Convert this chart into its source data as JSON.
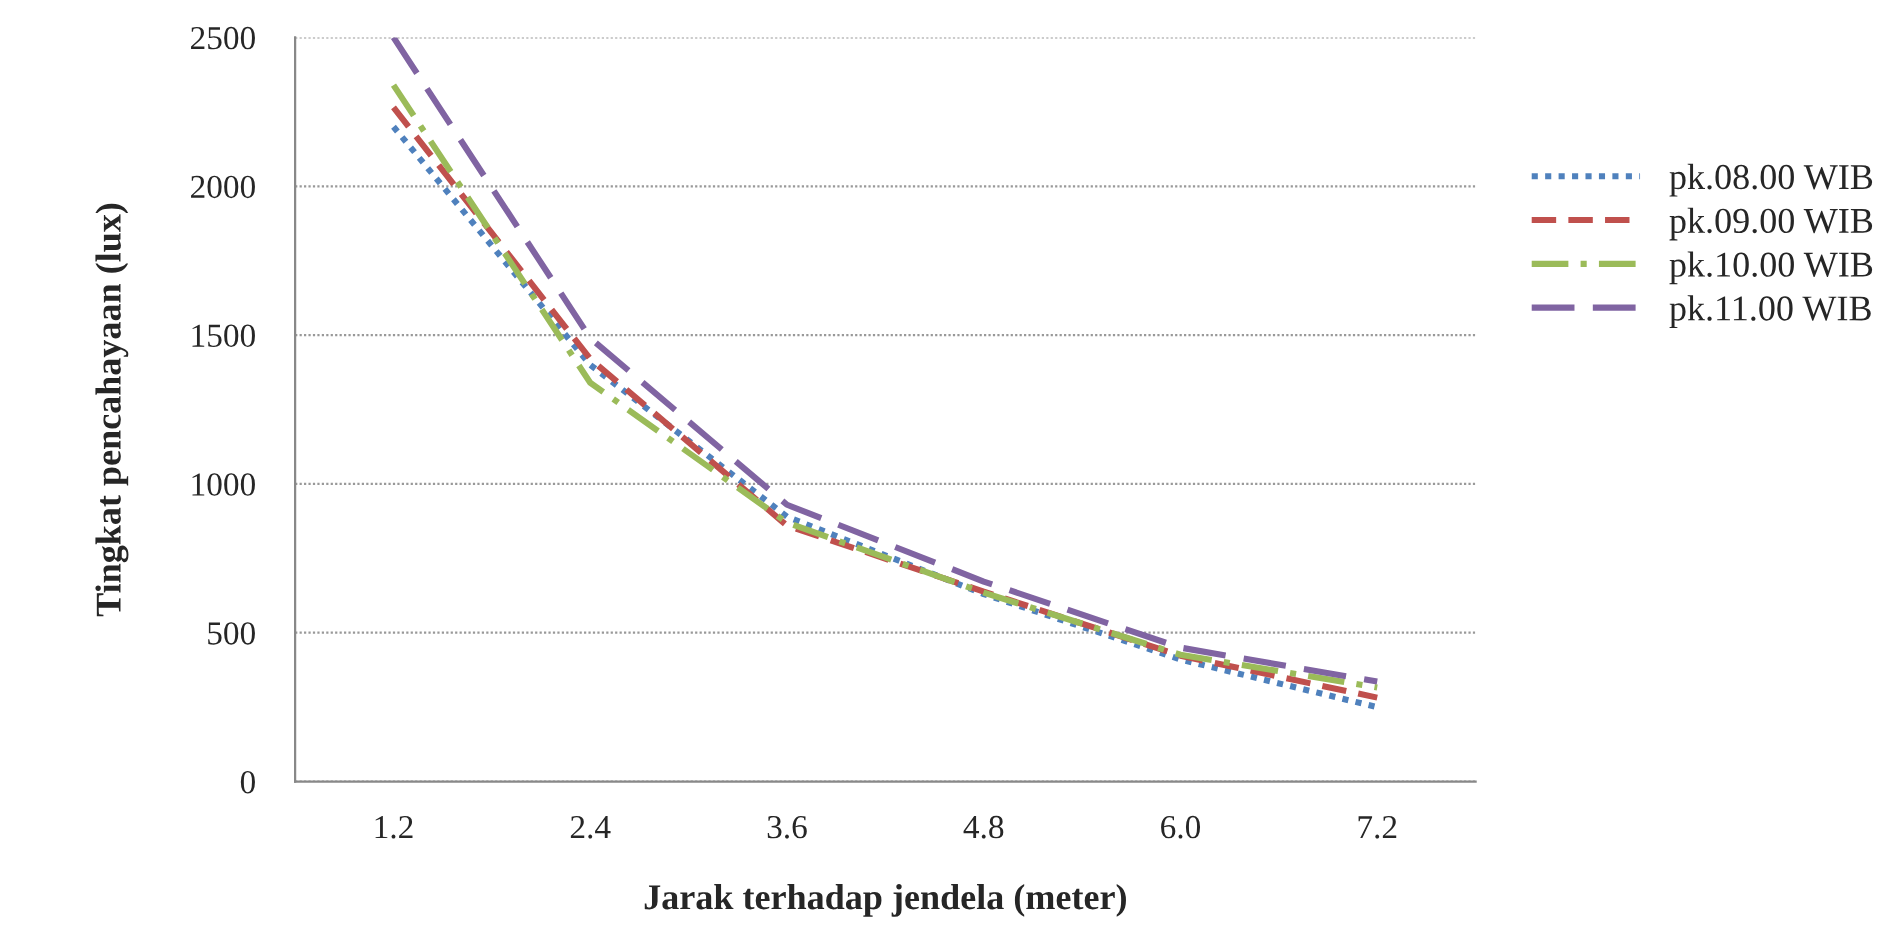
{
  "chart_data": {
    "type": "line",
    "xlabel": "Jarak terhadap jendela (meter)",
    "ylabel": "Tingkat pencahayaan (lux)",
    "categories": [
      "1.2",
      "2.4",
      "3.6",
      "4.8",
      "6.0",
      "7.2"
    ],
    "series": [
      {
        "name": "pk.08.00 WIB",
        "color": "#4f81bd",
        "line_style": "dotted",
        "values": [
          2200,
          1400,
          890,
          630,
          410,
          250
        ]
      },
      {
        "name": "pk.09.00 WIB",
        "color": "#c0504d",
        "line_style": "dashed",
        "values": [
          2265,
          1420,
          860,
          638,
          423,
          282
        ]
      },
      {
        "name": "pk.10.00 WIB",
        "color": "#9bbb59",
        "line_style": "dashdot",
        "values": [
          2340,
          1340,
          870,
          635,
          426,
          316
        ]
      },
      {
        "name": "pk.11.00 WIB",
        "color": "#8064a2",
        "line_style": "longdash",
        "values": [
          2500,
          1490,
          930,
          672,
          450,
          336
        ]
      }
    ],
    "ylim": [
      0,
      2500
    ],
    "yticks": [
      0,
      500,
      1000,
      1500,
      2000,
      2500
    ],
    "grid": "y",
    "legend": "right",
    "marker": "none"
  }
}
